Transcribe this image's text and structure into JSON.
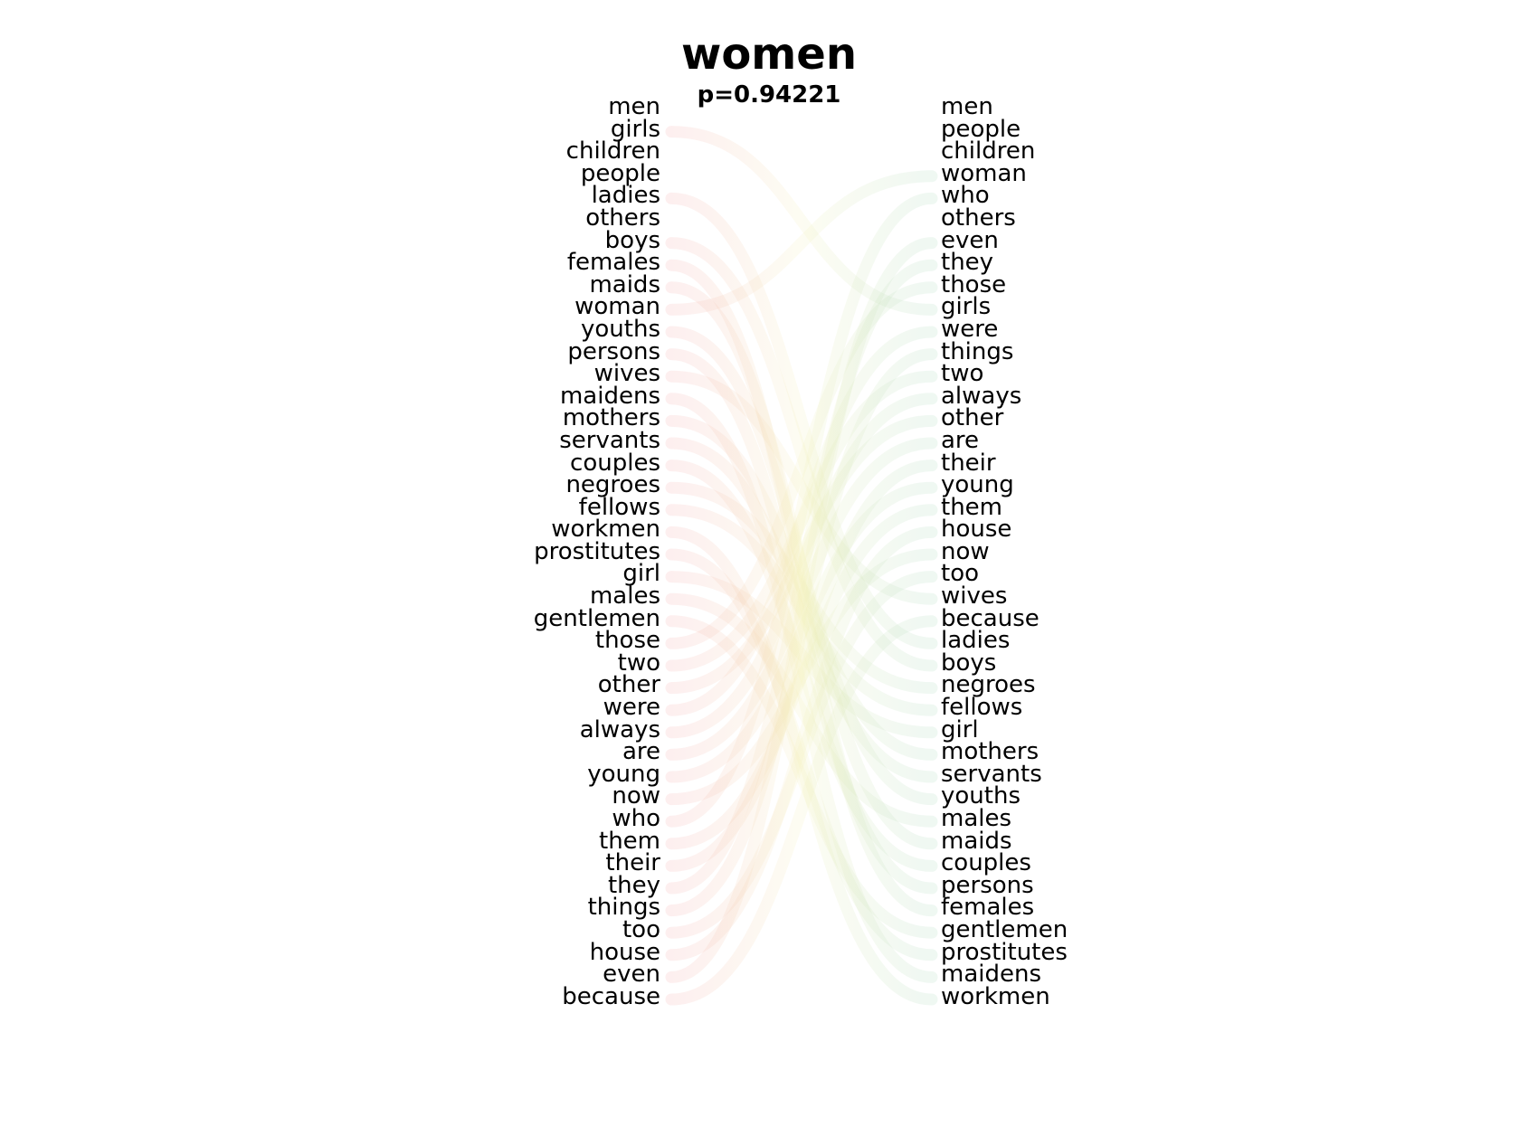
{
  "title": "women",
  "subtitle": "p=0.94221",
  "colors": {
    "left_links": "#f4a7a7",
    "right_links": "#a7d7b9",
    "mid_blend": "#f3f0b8",
    "text": "#000000"
  },
  "left_words": [
    "men",
    "girls",
    "children",
    "people",
    "ladies",
    "others",
    "boys",
    "females",
    "maids",
    "woman",
    "youths",
    "persons",
    "wives",
    "maidens",
    "mothers",
    "servants",
    "couples",
    "negroes",
    "fellows",
    "workmen",
    "prostitutes",
    "girl",
    "males",
    "gentlemen",
    "those",
    "two",
    "other",
    "were",
    "always",
    "are",
    "young",
    "now",
    "who",
    "them",
    "their",
    "they",
    "things",
    "too",
    "house",
    "even",
    "because"
  ],
  "right_words": [
    "men",
    "people",
    "children",
    "woman",
    "who",
    "others",
    "even",
    "they",
    "those",
    "girls",
    "were",
    "things",
    "two",
    "always",
    "other",
    "are",
    "their",
    "young",
    "them",
    "house",
    "now",
    "too",
    "wives",
    "because",
    "ladies",
    "boys",
    "negroes",
    "fellows",
    "girl",
    "mothers",
    "servants",
    "youths",
    "males",
    "maids",
    "couples",
    "persons",
    "females",
    "gentlemen",
    "prostitutes",
    "maidens",
    "workmen"
  ]
}
